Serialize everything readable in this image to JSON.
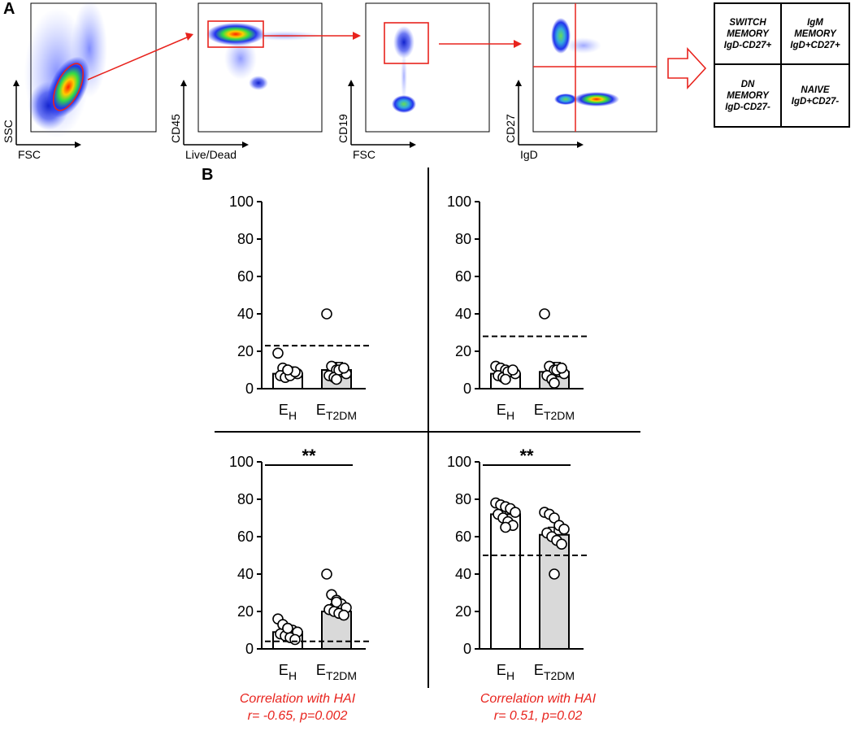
{
  "figure": {
    "panel_a_label": "A",
    "panel_b_label": "B"
  },
  "flow_plots": [
    {
      "xlabel": "FSC",
      "ylabel": "SSC"
    },
    {
      "xlabel": "Live/Dead",
      "ylabel": "CD45"
    },
    {
      "xlabel": "FSC",
      "ylabel": "CD19"
    },
    {
      "xlabel": "IgD",
      "ylabel": "CD27"
    }
  ],
  "quadrant_grid": {
    "top_left": [
      "SWITCH",
      "MEMORY",
      "IgD-CD27+"
    ],
    "top_right": [
      "IgM",
      "MEMORY",
      "IgD+CD27+"
    ],
    "bottom_left": [
      "DN",
      "MEMORY",
      "IgD-CD27-"
    ],
    "bottom_right": [
      "NAIVE",
      "IgD+CD27-"
    ]
  },
  "colors": {
    "gate": "#e8231d",
    "bar_eh": "#ffffff",
    "bar_et2dm": "#d9d9d9",
    "annotation": "#e8231d"
  },
  "chart_data": [
    {
      "type": "bar",
      "position": "top-left",
      "categories": [
        "E_H",
        "E_T2DM"
      ],
      "category_labels": [
        {
          "main": "E",
          "sub": "H"
        },
        {
          "main": "E",
          "sub": "T2DM"
        }
      ],
      "values": [
        8,
        10
      ],
      "error_upper": [
        10,
        14
      ],
      "points": [
        [
          19,
          11,
          10,
          9,
          8,
          7,
          6,
          7,
          9,
          10
        ],
        [
          40,
          12,
          10,
          9,
          8,
          7,
          6,
          10,
          11,
          5
        ]
      ],
      "reference_line": 23,
      "ylim": [
        0,
        100
      ],
      "yticks": [
        0,
        20,
        40,
        60,
        80,
        100
      ],
      "significance": ""
    },
    {
      "type": "bar",
      "position": "top-right",
      "categories": [
        "E_H",
        "E_T2DM"
      ],
      "category_labels": [
        {
          "main": "E",
          "sub": "H"
        },
        {
          "main": "E",
          "sub": "T2DM"
        }
      ],
      "values": [
        8,
        9
      ],
      "error_upper": [
        10,
        14
      ],
      "points": [
        [
          12,
          11,
          10,
          9,
          8,
          7,
          6,
          9,
          10,
          5
        ],
        [
          40,
          12,
          10,
          9,
          8,
          7,
          5,
          10,
          11,
          3
        ]
      ],
      "reference_line": 28,
      "ylim": [
        0,
        100
      ],
      "yticks": [
        0,
        20,
        40,
        60,
        80,
        100
      ],
      "significance": ""
    },
    {
      "type": "bar",
      "position": "bottom-left",
      "categories": [
        "E_H",
        "E_T2DM"
      ],
      "category_labels": [
        {
          "main": "E",
          "sub": "H"
        },
        {
          "main": "E",
          "sub": "T2DM"
        }
      ],
      "values": [
        9,
        20
      ],
      "error_upper": [
        12,
        24
      ],
      "points": [
        [
          16,
          13,
          11,
          10,
          9,
          8,
          7,
          6,
          5,
          11
        ],
        [
          40,
          29,
          26,
          24,
          22,
          21,
          20,
          19,
          18,
          25
        ]
      ],
      "reference_line": 4,
      "ylim": [
        0,
        100
      ],
      "yticks": [
        0,
        20,
        40,
        60,
        80,
        100
      ],
      "significance": "**"
    },
    {
      "type": "bar",
      "position": "bottom-right",
      "categories": [
        "E_H",
        "E_T2DM"
      ],
      "category_labels": [
        {
          "main": "E",
          "sub": "H"
        },
        {
          "main": "E",
          "sub": "T2DM"
        }
      ],
      "values": [
        72,
        61
      ],
      "error_upper": [
        75,
        65
      ],
      "points": [
        [
          78,
          77,
          76,
          75,
          73,
          72,
          70,
          68,
          66,
          65
        ],
        [
          73,
          72,
          70,
          66,
          64,
          62,
          60,
          58,
          56,
          40
        ]
      ],
      "reference_line": 50,
      "ylim": [
        0,
        100
      ],
      "yticks": [
        0,
        20,
        40,
        60,
        80,
        100
      ],
      "significance": "**"
    }
  ],
  "annotations": [
    {
      "line1": "Correlation with HAI",
      "line2": "r= -0.65, p=0.002"
    },
    {
      "line1": "Correlation with HAI",
      "line2": "r= 0.51, p=0.02"
    }
  ]
}
